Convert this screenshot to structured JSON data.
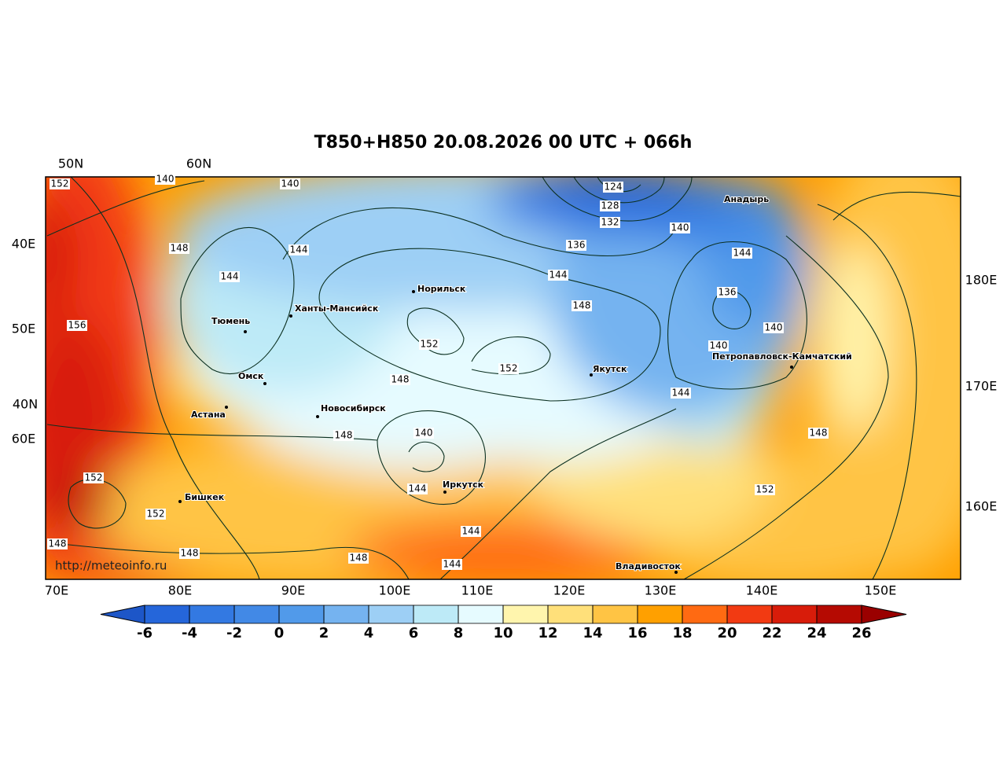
{
  "title": "T850+H850 20.08.2026 00 UTC + 066h",
  "watermark": "http://meteoinfo.ru",
  "lat_labels_top": [
    "50N",
    "60N"
  ],
  "labels_left": [
    "40E",
    "50E",
    "40N",
    "60E"
  ],
  "labels_right": [
    "180E",
    "170E",
    "160E"
  ],
  "lon_labels_bottom": [
    "70E",
    "80E",
    "90E",
    "100E",
    "110E",
    "120E",
    "130E",
    "140E",
    "150E"
  ],
  "cities": [
    "Анадырь",
    "Норильск",
    "Ханты-Мансийск",
    "Тюмень",
    "Омск",
    "Якутск",
    "Петропавловск-Камчатский",
    "Новосибирск",
    "Астана",
    "Иркутск",
    "Бишкек",
    "Владивосток"
  ],
  "contour_labels": [
    152,
    140,
    140,
    124,
    128,
    132,
    140,
    148,
    144,
    136,
    144,
    144,
    144,
    148,
    136,
    156,
    140,
    152,
    140,
    152,
    148,
    144,
    140,
    148,
    148,
    152,
    144,
    152,
    152,
    144,
    148,
    148,
    148,
    144
  ],
  "colorbar": {
    "ticks": [
      -6,
      -4,
      -2,
      0,
      2,
      4,
      6,
      8,
      10,
      12,
      14,
      16,
      18,
      20,
      22,
      24,
      26
    ],
    "colors": [
      "#1d56c8",
      "#2566da",
      "#3379e2",
      "#4289e6",
      "#519aea",
      "#75b3f0",
      "#9dcff5",
      "#bdeaf7",
      "#e6fbff",
      "#fff5ad",
      "#ffe07a",
      "#ffc444",
      "#ffa000",
      "#ff6a12",
      "#f23a12",
      "#d81c0a",
      "#b50a02",
      "#9a0000"
    ]
  }
}
